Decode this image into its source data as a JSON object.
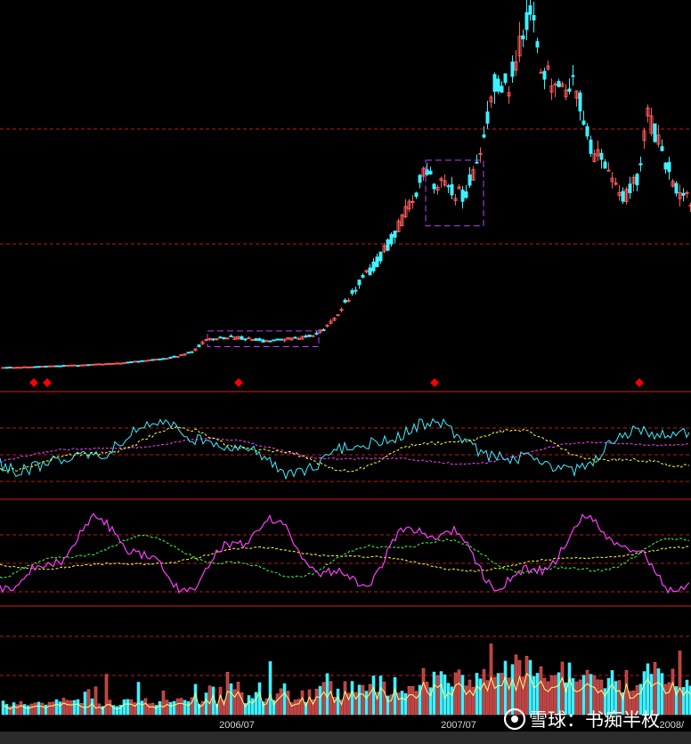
{
  "chart_data": {
    "type": "candlestick",
    "x_tick_labels": [
      "2006/07",
      "2007/07",
      "2008/"
    ],
    "watermark": "雪球：书痴半枚",
    "colors": {
      "background": "#000000",
      "rise": "#ff5a5a",
      "fall": "#3ff0ff",
      "grid": "#c01818",
      "panel_divider": "#d42020",
      "signal_marker": "#ff0000",
      "highlight_box": "#c040ff",
      "line_white": "#ffffff",
      "line_yellow": "#ffff40",
      "line_magenta": "#ff40ff",
      "line_green": "#40ff40",
      "line_cyan": "#3ff0ff",
      "volume_ma": "#ffff80"
    },
    "price_anchors": [
      [
        0,
        10
      ],
      [
        35,
        11
      ],
      [
        60,
        12
      ],
      [
        90,
        13
      ],
      [
        130,
        15
      ],
      [
        160,
        18
      ],
      [
        190,
        21
      ],
      [
        215,
        28
      ],
      [
        230,
        42
      ],
      [
        250,
        45
      ],
      [
        275,
        43
      ],
      [
        300,
        40
      ],
      [
        325,
        43
      ],
      [
        350,
        46
      ],
      [
        365,
        55
      ],
      [
        380,
        75
      ],
      [
        400,
        105
      ],
      [
        420,
        128
      ],
      [
        440,
        160
      ],
      [
        460,
        200
      ],
      [
        475,
        230
      ],
      [
        490,
        220
      ],
      [
        505,
        212
      ],
      [
        520,
        205
      ],
      [
        535,
        245
      ],
      [
        545,
        295
      ],
      [
        555,
        340
      ],
      [
        570,
        330
      ],
      [
        585,
        395
      ],
      [
        595,
        420
      ],
      [
        605,
        350
      ],
      [
        615,
        340
      ],
      [
        630,
        320
      ],
      [
        645,
        335
      ],
      [
        660,
        265
      ],
      [
        680,
        235
      ],
      [
        700,
        205
      ],
      [
        715,
        225
      ],
      [
        725,
        305
      ],
      [
        740,
        260
      ],
      [
        760,
        210
      ],
      [
        776,
        200
      ]
    ],
    "price_axis": {
      "min": 0,
      "max": 430
    },
    "signal_markers_x": [
      38,
      53,
      268,
      488,
      718
    ],
    "highlight_regions": [
      {
        "x_from": 233,
        "x_to": 358,
        "price_low": 34,
        "price_high": 52
      },
      {
        "x_from": 478,
        "x_to": 543,
        "price_low": 172,
        "price_high": 247
      }
    ],
    "indicator_panels": 3,
    "series": [
      {
        "name": "",
        "panel": "price",
        "style": "candles"
      },
      {
        "name": "",
        "panel": "oscillator-1",
        "style": "solid",
        "color": "line_cyan"
      },
      {
        "name": "",
        "panel": "oscillator-1",
        "style": "dashed",
        "color": "line_yellow"
      },
      {
        "name": "",
        "panel": "oscillator-1",
        "style": "dashed",
        "color": "line_magenta"
      },
      {
        "name": "",
        "panel": "oscillator-2",
        "style": "solid",
        "color": "line_magenta"
      },
      {
        "name": "",
        "panel": "oscillator-2",
        "style": "dashed",
        "color": "line_green"
      },
      {
        "name": "",
        "panel": "oscillator-2",
        "style": "dashed",
        "color": "line_yellow"
      },
      {
        "name": "",
        "panel": "volume",
        "style": "bars"
      },
      {
        "name": "",
        "panel": "volume",
        "style": "line",
        "color": "volume_ma"
      }
    ]
  }
}
